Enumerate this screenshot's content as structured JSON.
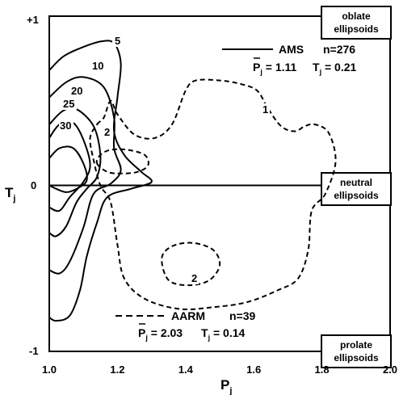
{
  "chart_data": {
    "type": "contour",
    "xlim": [
      1.0,
      2.0
    ],
    "ylim": [
      -1,
      1
    ],
    "xticks": [
      "1.0",
      "1.2",
      "1.4",
      "1.6",
      "1.8",
      "2.0"
    ],
    "yticks": [
      "+1",
      "0",
      "-1"
    ],
    "xlabel": "P",
    "xlabel_sub": "j",
    "ylabel": "T",
    "ylabel_sub": "j",
    "region_labels": {
      "top": [
        "oblate",
        "ellipsoids"
      ],
      "middle": [
        "neutral",
        "ellipsoids"
      ],
      "bottom": [
        "prolate",
        "ellipsoids"
      ]
    },
    "series": [
      {
        "name": "AMS",
        "style": "solid",
        "n": "n=276",
        "stats": {
          "P": "1.11",
          "T": "0.21"
        },
        "contours": [
          {
            "level": "5",
            "points": [
              [
                1.0,
                0.68
              ],
              [
                1.04,
                0.76
              ],
              [
                1.09,
                0.81
              ],
              [
                1.15,
                0.85
              ],
              [
                1.19,
                0.84
              ],
              [
                1.21,
                0.72
              ],
              [
                1.2,
                0.52
              ],
              [
                1.19,
                0.32
              ],
              [
                1.22,
                0.18
              ],
              [
                1.27,
                0.08
              ],
              [
                1.3,
                0.02
              ],
              [
                1.24,
                -0.02
              ],
              [
                1.17,
                -0.07
              ],
              [
                1.14,
                -0.22
              ],
              [
                1.11,
                -0.42
              ],
              [
                1.09,
                -0.62
              ],
              [
                1.06,
                -0.77
              ],
              [
                1.02,
                -0.8
              ],
              [
                1.0,
                -0.78
              ]
            ]
          },
          {
            "level": "10",
            "points": [
              [
                1.0,
                0.52
              ],
              [
                1.05,
                0.61
              ],
              [
                1.1,
                0.64
              ],
              [
                1.16,
                0.58
              ],
              [
                1.19,
                0.4
              ],
              [
                1.19,
                0.22
              ],
              [
                1.21,
                0.09
              ],
              [
                1.18,
                0.01
              ],
              [
                1.13,
                -0.05
              ],
              [
                1.1,
                -0.25
              ],
              [
                1.06,
                -0.45
              ],
              [
                1.03,
                -0.52
              ],
              [
                1.0,
                -0.5
              ]
            ]
          },
          {
            "level": "20",
            "points": [
              [
                1.0,
                0.36
              ],
              [
                1.04,
                0.44
              ],
              [
                1.08,
                0.45
              ],
              [
                1.13,
                0.35
              ],
              [
                1.15,
                0.18
              ],
              [
                1.14,
                0.05
              ],
              [
                1.11,
                -0.02
              ],
              [
                1.08,
                -0.1
              ],
              [
                1.05,
                -0.24
              ],
              [
                1.02,
                -0.3
              ],
              [
                1.0,
                -0.28
              ]
            ]
          },
          {
            "level": "25",
            "points": [
              [
                1.0,
                0.28
              ],
              [
                1.03,
                0.36
              ],
              [
                1.07,
                0.37
              ],
              [
                1.1,
                0.27
              ],
              [
                1.12,
                0.12
              ],
              [
                1.1,
                0.02
              ],
              [
                1.06,
                -0.07
              ],
              [
                1.03,
                -0.15
              ],
              [
                1.0,
                -0.13
              ]
            ]
          },
          {
            "level": "30",
            "points": [
              [
                1.0,
                0.16
              ],
              [
                1.03,
                0.22
              ],
              [
                1.07,
                0.22
              ],
              [
                1.1,
                0.13
              ],
              [
                1.11,
                0.03
              ],
              [
                1.08,
                -0.02
              ],
              [
                1.05,
                -0.04
              ],
              [
                1.02,
                -0.02
              ],
              [
                1.0,
                0.0
              ]
            ]
          }
        ]
      },
      {
        "name": "AARM",
        "style": "dashed",
        "n": "n=39",
        "stats": {
          "P": "2.03",
          "T": "0.14"
        },
        "contours": [
          {
            "level": "1",
            "points": [
              [
                1.14,
                0.36
              ],
              [
                1.16,
                0.4
              ],
              [
                1.18,
                0.5
              ],
              [
                1.2,
                0.42
              ],
              [
                1.25,
                0.3
              ],
              [
                1.31,
                0.28
              ],
              [
                1.36,
                0.36
              ],
              [
                1.4,
                0.56
              ],
              [
                1.43,
                0.62
              ],
              [
                1.5,
                0.62
              ],
              [
                1.56,
                0.6
              ],
              [
                1.61,
                0.56
              ],
              [
                1.64,
                0.46
              ],
              [
                1.68,
                0.35
              ],
              [
                1.72,
                0.32
              ],
              [
                1.75,
                0.35
              ],
              [
                1.78,
                0.36
              ],
              [
                1.82,
                0.31
              ],
              [
                1.84,
                0.14
              ],
              [
                1.81,
                -0.05
              ],
              [
                1.77,
                -0.15
              ],
              [
                1.76,
                -0.38
              ],
              [
                1.73,
                -0.55
              ],
              [
                1.67,
                -0.62
              ],
              [
                1.58,
                -0.69
              ],
              [
                1.48,
                -0.72
              ],
              [
                1.38,
                -0.73
              ],
              [
                1.28,
                -0.67
              ],
              [
                1.22,
                -0.55
              ],
              [
                1.2,
                -0.35
              ],
              [
                1.18,
                -0.1
              ],
              [
                1.15,
                0.0
              ],
              [
                1.13,
                0.15
              ],
              [
                1.12,
                0.28
              ]
            ]
          },
          {
            "level": "2",
            "points": [
              [
                1.14,
                0.13
              ],
              [
                1.17,
                0.08
              ],
              [
                1.21,
                0.07
              ],
              [
                1.26,
                0.08
              ],
              [
                1.29,
                0.12
              ],
              [
                1.28,
                0.18
              ],
              [
                1.23,
                0.21
              ],
              [
                1.18,
                0.21
              ],
              [
                1.15,
                0.18
              ]
            ]
          },
          {
            "level": "2",
            "points": [
              [
                1.33,
                -0.43
              ],
              [
                1.36,
                -0.36
              ],
              [
                1.42,
                -0.34
              ],
              [
                1.48,
                -0.38
              ],
              [
                1.5,
                -0.47
              ],
              [
                1.47,
                -0.56
              ],
              [
                1.41,
                -0.59
              ],
              [
                1.35,
                -0.56
              ]
            ]
          }
        ]
      }
    ]
  }
}
